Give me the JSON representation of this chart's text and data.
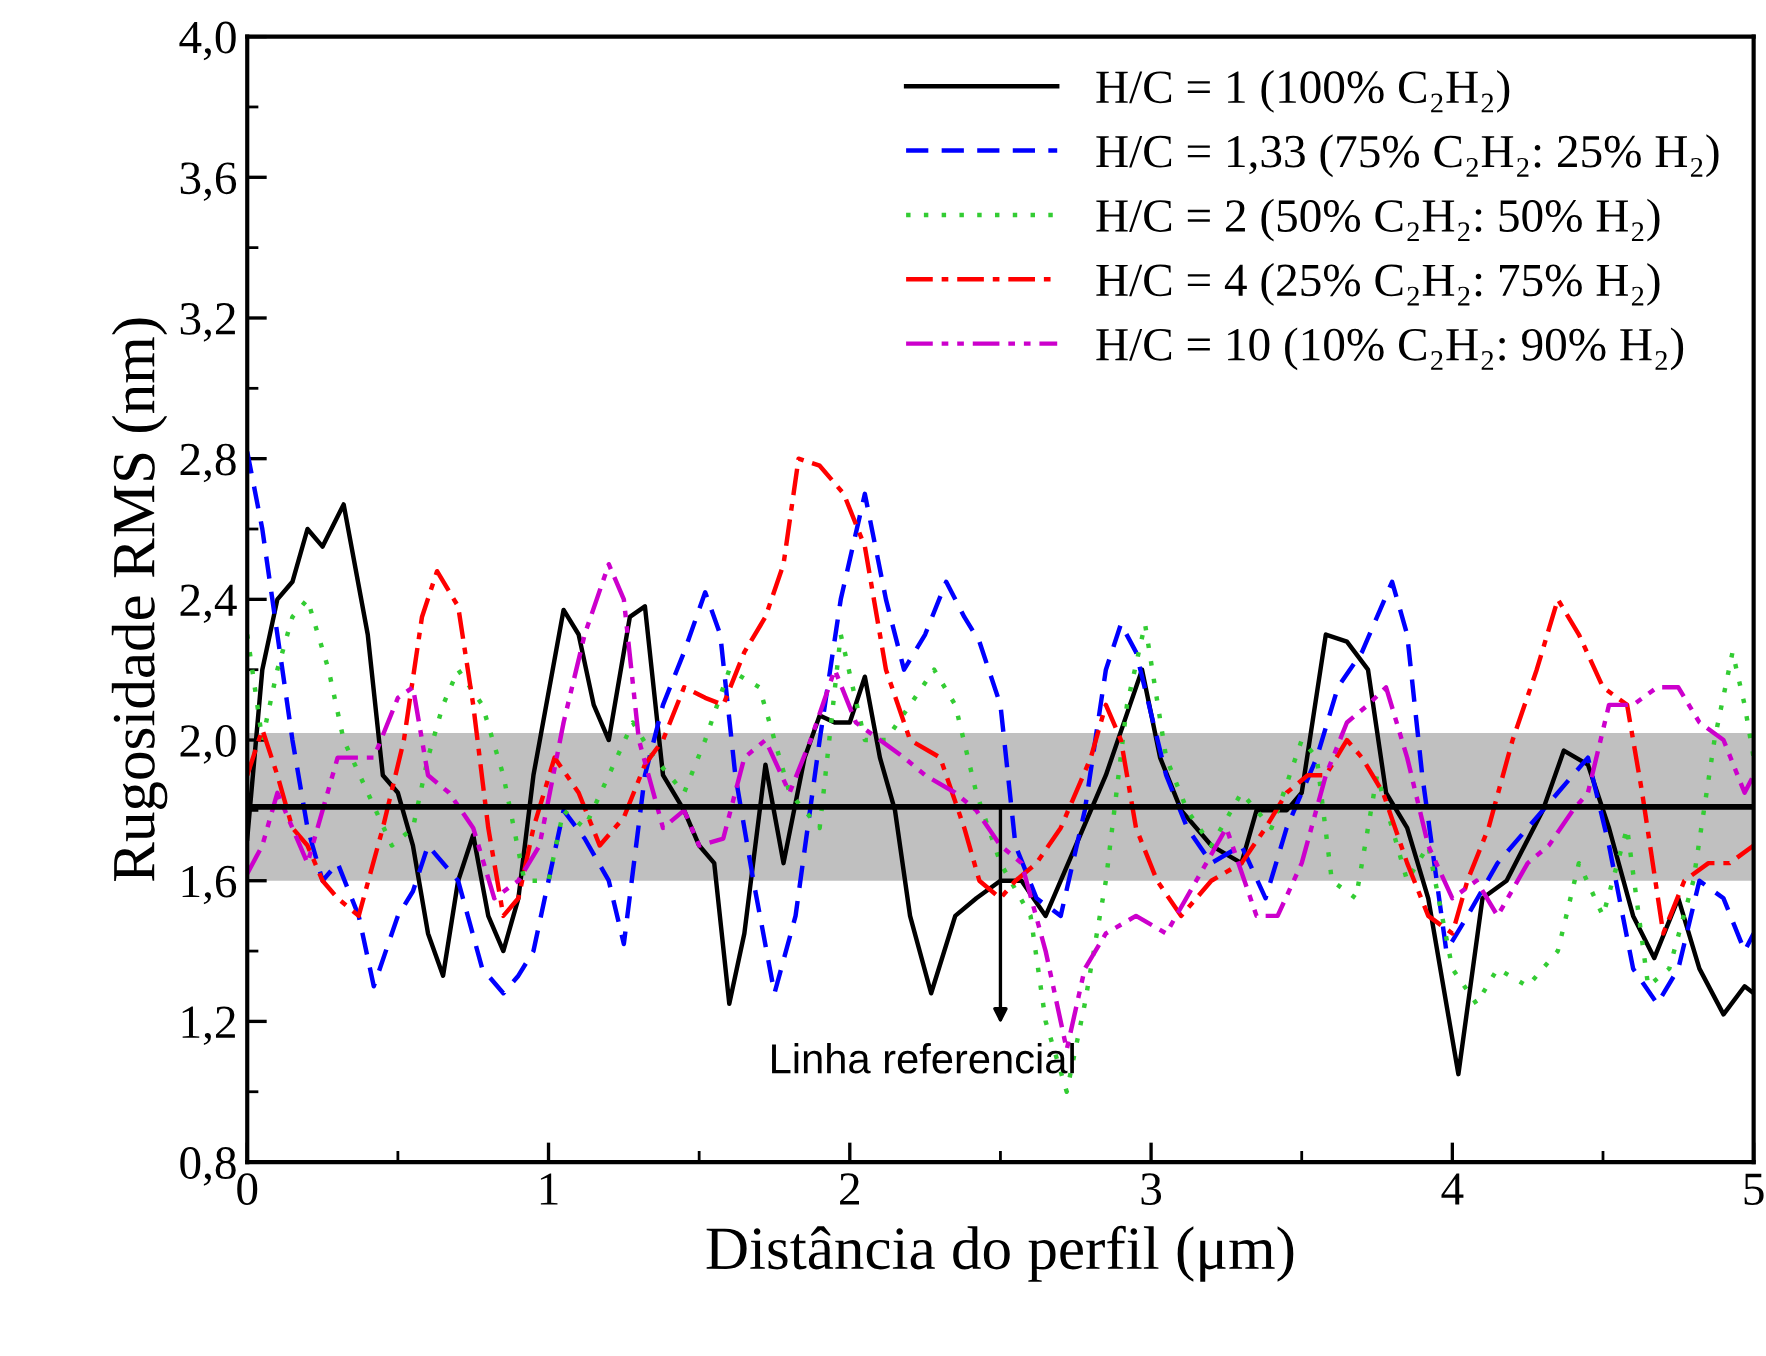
{
  "chart_data": {
    "type": "line",
    "xlabel": "Distância do perfil (μm)",
    "ylabel": "Rugosidade RMS (nm)",
    "xlim": [
      0,
      5
    ],
    "xticks": [
      0,
      1,
      2,
      3,
      4,
      5
    ],
    "ylim": [
      0.8,
      4.0
    ],
    "yticks": [
      {
        "value": 0.8,
        "label": "0,8"
      },
      {
        "value": 1.2,
        "label": "1,2"
      },
      {
        "value": 1.6,
        "label": "1,6"
      },
      {
        "value": 2.0,
        "label": "2,0"
      },
      {
        "value": 2.4,
        "label": "2,4"
      },
      {
        "value": 2.8,
        "label": "2,8"
      },
      {
        "value": 3.2,
        "label": "3,2"
      },
      {
        "value": 3.6,
        "label": "3,6"
      },
      {
        "value": 4.0,
        "label": "4,0"
      }
    ],
    "grid": false,
    "legend": "top right",
    "ref_lines": [
      {
        "axis": "y",
        "value": 1.81,
        "label": "Linha referencial",
        "color": "#000000",
        "line_style": "solid"
      }
    ],
    "bands": [
      {
        "axis": "y",
        "from": 1.6,
        "to": 2.02,
        "color": "#c0c0c0"
      }
    ],
    "series": [
      {
        "name": "H/C = 1 (100% C₂H₂)",
        "color": "#000000",
        "line_style": "solid",
        "x": [
          0,
          0.05,
          0.1,
          0.15,
          0.2,
          0.25,
          0.32,
          0.4,
          0.45,
          0.5,
          0.55,
          0.6,
          0.65,
          0.7,
          0.75,
          0.8,
          0.85,
          0.9,
          0.95,
          1.05,
          1.1,
          1.15,
          1.2,
          1.27,
          1.32,
          1.38,
          1.45,
          1.5,
          1.55,
          1.6,
          1.65,
          1.72,
          1.78,
          1.85,
          1.9,
          1.95,
          2.0,
          2.05,
          2.1,
          2.15,
          2.2,
          2.27,
          2.35,
          2.42,
          2.5,
          2.57,
          2.65,
          2.75,
          2.85,
          2.93,
          2.97,
          3.03,
          3.1,
          3.2,
          3.3,
          3.35,
          3.45,
          3.5,
          3.58,
          3.65,
          3.72,
          3.78,
          3.85,
          3.92,
          4.02,
          4.1,
          4.18,
          4.3,
          4.37,
          4.45,
          4.52,
          4.6,
          4.67,
          4.75,
          4.82,
          4.9,
          4.97,
          5.0
        ],
        "values": [
          1.72,
          2.2,
          2.4,
          2.45,
          2.6,
          2.55,
          2.67,
          2.3,
          1.9,
          1.85,
          1.7,
          1.45,
          1.33,
          1.6,
          1.73,
          1.5,
          1.4,
          1.55,
          1.9,
          2.37,
          2.3,
          2.1,
          2.0,
          2.35,
          2.38,
          1.9,
          1.8,
          1.7,
          1.65,
          1.25,
          1.45,
          1.93,
          1.65,
          1.95,
          2.07,
          2.05,
          2.05,
          2.18,
          1.95,
          1.8,
          1.5,
          1.28,
          1.5,
          1.55,
          1.6,
          1.6,
          1.5,
          1.7,
          1.9,
          2.1,
          2.2,
          1.95,
          1.8,
          1.7,
          1.65,
          1.8,
          1.8,
          1.85,
          2.3,
          2.28,
          2.2,
          1.85,
          1.75,
          1.55,
          1.05,
          1.55,
          1.6,
          1.8,
          1.97,
          1.93,
          1.75,
          1.5,
          1.38,
          1.55,
          1.35,
          1.22,
          1.3,
          1.28
        ]
      },
      {
        "name": "H/C = 1,33 (75% C₂H₂: 25% H₂)",
        "color": "#0000ff",
        "line_style": "dashed",
        "x": [
          0,
          0.05,
          0.1,
          0.15,
          0.2,
          0.25,
          0.3,
          0.37,
          0.42,
          0.5,
          0.55,
          0.6,
          0.7,
          0.78,
          0.85,
          0.9,
          0.95,
          1.0,
          1.05,
          1.12,
          1.2,
          1.25,
          1.32,
          1.38,
          1.45,
          1.52,
          1.57,
          1.62,
          1.68,
          1.75,
          1.82,
          1.9,
          1.97,
          2.05,
          2.12,
          2.18,
          2.25,
          2.32,
          2.38,
          2.43,
          2.5,
          2.55,
          2.62,
          2.7,
          2.78,
          2.85,
          2.9,
          2.95,
          3.05,
          3.12,
          3.2,
          3.3,
          3.38,
          3.45,
          3.55,
          3.62,
          3.7,
          3.8,
          3.85,
          3.9,
          3.98,
          4.05,
          4.15,
          4.25,
          4.35,
          4.45,
          4.52,
          4.6,
          4.68,
          4.75,
          4.82,
          4.9,
          4.97,
          5.0
        ],
        "values": [
          2.82,
          2.6,
          2.3,
          2.0,
          1.75,
          1.6,
          1.65,
          1.5,
          1.3,
          1.5,
          1.57,
          1.7,
          1.6,
          1.35,
          1.28,
          1.33,
          1.4,
          1.6,
          1.8,
          1.72,
          1.6,
          1.42,
          1.9,
          2.1,
          2.25,
          2.42,
          2.3,
          1.9,
          1.6,
          1.28,
          1.5,
          2.0,
          2.4,
          2.7,
          2.4,
          2.2,
          2.3,
          2.45,
          2.35,
          2.28,
          2.1,
          1.7,
          1.55,
          1.5,
          1.8,
          2.2,
          2.33,
          2.25,
          1.9,
          1.75,
          1.65,
          1.7,
          1.55,
          1.75,
          1.95,
          2.15,
          2.25,
          2.45,
          2.3,
          1.9,
          1.4,
          1.5,
          1.65,
          1.75,
          1.85,
          1.95,
          1.7,
          1.35,
          1.25,
          1.35,
          1.6,
          1.55,
          1.4,
          1.45
        ]
      },
      {
        "name": "H/C = 2 (50% C₂H₂: 50% H₂)",
        "color": "#33cc33",
        "line_style": "dotted",
        "x": [
          0,
          0.05,
          0.1,
          0.15,
          0.2,
          0.27,
          0.32,
          0.4,
          0.48,
          0.55,
          0.6,
          0.65,
          0.7,
          0.78,
          0.85,
          0.92,
          1.0,
          1.05,
          1.12,
          1.2,
          1.28,
          1.35,
          1.45,
          1.52,
          1.6,
          1.7,
          1.8,
          1.9,
          1.97,
          2.05,
          2.12,
          2.2,
          2.28,
          2.35,
          2.42,
          2.5,
          2.6,
          2.65,
          2.72,
          2.78,
          2.85,
          2.92,
          2.98,
          3.05,
          3.12,
          3.2,
          3.3,
          3.4,
          3.5,
          3.55,
          3.6,
          3.68,
          3.75,
          3.85,
          3.92,
          4.0,
          4.08,
          4.15,
          4.25,
          4.35,
          4.42,
          4.5,
          4.58,
          4.65,
          4.72,
          4.8,
          4.87,
          4.93,
          4.97,
          5.0
        ],
        "values": [
          2.3,
          2.0,
          2.2,
          2.35,
          2.4,
          2.2,
          2.0,
          1.85,
          1.7,
          1.75,
          1.95,
          2.1,
          2.2,
          2.1,
          1.9,
          1.6,
          1.6,
          1.8,
          1.75,
          1.9,
          2.05,
          1.95,
          1.85,
          2.0,
          2.2,
          2.15,
          1.85,
          1.75,
          2.3,
          2.0,
          2.0,
          2.1,
          2.2,
          2.1,
          1.85,
          1.65,
          1.5,
          1.2,
          1.0,
          1.25,
          1.6,
          2.1,
          2.33,
          1.95,
          1.8,
          1.7,
          1.85,
          1.75,
          2.0,
          1.95,
          1.6,
          1.55,
          1.9,
          1.6,
          1.7,
          1.35,
          1.25,
          1.35,
          1.3,
          1.4,
          1.65,
          1.5,
          1.75,
          1.3,
          1.35,
          1.6,
          2.0,
          2.25,
          2.1,
          1.95
        ]
      },
      {
        "name": "H/C = 4 (25% C₂H₂: 75% H₂)",
        "color": "#ff0000",
        "line_style": "dashdot",
        "x": [
          0,
          0.05,
          0.1,
          0.15,
          0.2,
          0.25,
          0.3,
          0.37,
          0.45,
          0.52,
          0.58,
          0.63,
          0.7,
          0.75,
          0.8,
          0.85,
          0.9,
          0.95,
          1.02,
          1.1,
          1.17,
          1.25,
          1.32,
          1.38,
          1.45,
          1.52,
          1.58,
          1.65,
          1.72,
          1.78,
          1.83,
          1.9,
          1.98,
          2.05,
          2.12,
          2.2,
          2.3,
          2.38,
          2.43,
          2.5,
          2.55,
          2.62,
          2.7,
          2.8,
          2.85,
          2.9,
          2.95,
          3.02,
          3.1,
          3.2,
          3.3,
          3.38,
          3.45,
          3.52,
          3.58,
          3.65,
          3.7,
          3.77,
          3.85,
          3.92,
          4.0,
          4.05,
          4.12,
          4.2,
          4.28,
          4.35,
          4.42,
          4.5,
          4.58,
          4.63,
          4.7,
          4.77,
          4.85,
          4.92,
          5.0
        ],
        "values": [
          1.9,
          2.03,
          1.9,
          1.75,
          1.7,
          1.6,
          1.55,
          1.5,
          1.75,
          2.0,
          2.35,
          2.48,
          2.38,
          2.1,
          1.75,
          1.5,
          1.55,
          1.75,
          1.95,
          1.85,
          1.7,
          1.78,
          1.93,
          2.0,
          2.15,
          2.12,
          2.1,
          2.25,
          2.35,
          2.5,
          2.8,
          2.78,
          2.7,
          2.55,
          2.2,
          2.0,
          1.95,
          1.75,
          1.6,
          1.55,
          1.6,
          1.65,
          1.75,
          1.95,
          2.1,
          2.0,
          1.75,
          1.6,
          1.5,
          1.6,
          1.65,
          1.75,
          1.85,
          1.9,
          1.9,
          2.0,
          1.95,
          1.85,
          1.65,
          1.5,
          1.45,
          1.6,
          1.75,
          2.0,
          2.2,
          2.4,
          2.3,
          2.15,
          2.1,
          1.85,
          1.45,
          1.6,
          1.65,
          1.65,
          1.7
        ]
      },
      {
        "name": "H/C = 10 (10% C₂H₂: 90% H₂)",
        "color": "#cc00cc",
        "line_style": "dashdotdot",
        "x": [
          0,
          0.05,
          0.1,
          0.15,
          0.2,
          0.25,
          0.3,
          0.35,
          0.42,
          0.5,
          0.55,
          0.6,
          0.67,
          0.75,
          0.82,
          0.9,
          0.97,
          1.05,
          1.12,
          1.2,
          1.25,
          1.3,
          1.38,
          1.45,
          1.5,
          1.58,
          1.65,
          1.72,
          1.8,
          1.87,
          1.95,
          2.02,
          2.1,
          2.18,
          2.25,
          2.35,
          2.42,
          2.5,
          2.57,
          2.65,
          2.72,
          2.78,
          2.85,
          2.95,
          3.05,
          3.15,
          3.25,
          3.35,
          3.42,
          3.5,
          3.58,
          3.65,
          3.72,
          3.78,
          3.85,
          3.92,
          4.0,
          4.08,
          4.15,
          4.25,
          4.32,
          4.4,
          4.45,
          4.52,
          4.6,
          4.68,
          4.75,
          4.82,
          4.9,
          4.97,
          5.0
        ],
        "values": [
          1.62,
          1.7,
          1.85,
          1.75,
          1.65,
          1.8,
          1.95,
          1.95,
          1.95,
          2.12,
          2.15,
          1.9,
          1.85,
          1.75,
          1.55,
          1.6,
          1.7,
          2.05,
          2.3,
          2.5,
          2.4,
          2.0,
          1.75,
          1.8,
          1.7,
          1.72,
          1.95,
          2.0,
          1.85,
          2.0,
          2.2,
          2.05,
          2.0,
          1.95,
          1.9,
          1.85,
          1.8,
          1.7,
          1.65,
          1.4,
          1.12,
          1.35,
          1.45,
          1.5,
          1.45,
          1.6,
          1.75,
          1.5,
          1.5,
          1.65,
          1.9,
          2.05,
          2.1,
          2.15,
          1.95,
          1.7,
          1.55,
          1.6,
          1.5,
          1.65,
          1.7,
          1.8,
          1.85,
          2.1,
          2.1,
          2.15,
          2.15,
          2.05,
          2.0,
          1.85,
          1.9
        ]
      }
    ]
  }
}
